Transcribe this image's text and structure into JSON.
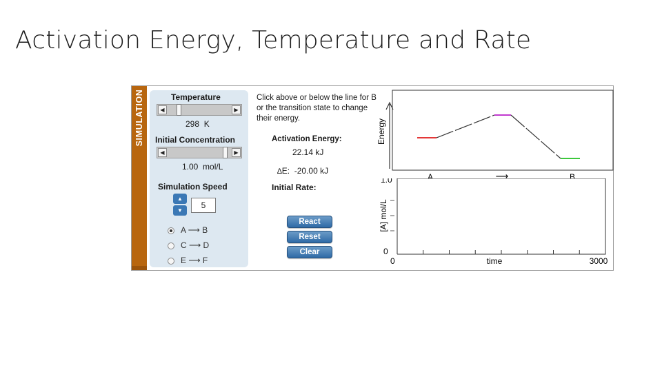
{
  "slide": {
    "title": "Activation Energy, Temperature and Rate"
  },
  "sim": {
    "band_label": "SIMULATION",
    "temperature": {
      "label": "Temperature",
      "value": "298",
      "unit": "K",
      "level": 0.15
    },
    "concentration": {
      "label": "Initial Concentration",
      "value": "1.00",
      "unit": "mol/L",
      "level": 0.95
    },
    "speed": {
      "label": "Simulation Speed",
      "value": "5"
    },
    "reactions": [
      {
        "left": "A",
        "right": "B",
        "selected": true
      },
      {
        "left": "C",
        "right": "D",
        "selected": false
      },
      {
        "left": "E",
        "right": "F",
        "selected": false
      }
    ],
    "instructions": "Click above or below the line for B or the transition state to change their energy.",
    "activation_energy": {
      "label": "Activation Energy:",
      "value": "22.14 kJ"
    },
    "delta_e": {
      "label": "E:",
      "value": "-20.00 kJ"
    },
    "initial_rate": {
      "label": "Initial Rate:"
    },
    "buttons": {
      "react": "React",
      "reset": "Reset",
      "clear": "Clear"
    },
    "energy_diagram": {
      "ylabel": "Energy",
      "x_left": "A",
      "x_arrow": "⟶",
      "x_right": "B",
      "colors": {
        "reactant": "#e01b1b",
        "transition": "#b81cc8",
        "product": "#20c020",
        "curve": "#333333"
      }
    },
    "conc_plot": {
      "ylabel": "[A] mol/L",
      "y_top": "1.0",
      "y_bottom": "0",
      "x_left": "0",
      "x_right": "3000",
      "xlabel": "time"
    }
  }
}
